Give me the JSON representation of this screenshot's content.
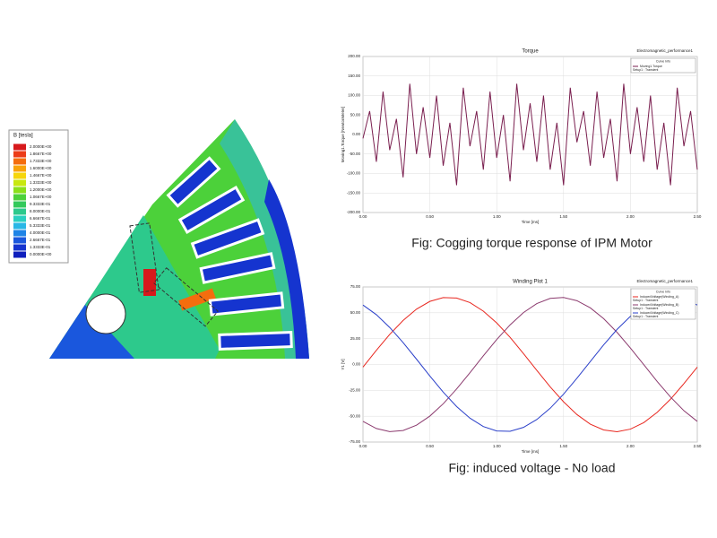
{
  "flux_legend": {
    "title": "B [tesla]",
    "items": [
      {
        "label": "2.0000E+00",
        "color": "#d7191c"
      },
      {
        "label": "1.8667E+00",
        "color": "#ec3b17"
      },
      {
        "label": "1.7333E+00",
        "color": "#f46d0e"
      },
      {
        "label": "1.6000E+00",
        "color": "#f9a30a"
      },
      {
        "label": "1.4667E+00",
        "color": "#f6d60b"
      },
      {
        "label": "1.3333E+00",
        "color": "#c8e80f"
      },
      {
        "label": "1.2000E+00",
        "color": "#8be01a"
      },
      {
        "label": "1.0667E+00",
        "color": "#4cd13a"
      },
      {
        "label": "9.3333E-01",
        "color": "#33c95b"
      },
      {
        "label": "8.0000E-01",
        "color": "#2dc98c"
      },
      {
        "label": "6.6667E-01",
        "color": "#2ad0c0"
      },
      {
        "label": "5.3333E-01",
        "color": "#29b7e6"
      },
      {
        "label": "4.0000E-01",
        "color": "#1f84e6"
      },
      {
        "label": "2.6667E-01",
        "color": "#1a57dd"
      },
      {
        "label": "1.3333E-01",
        "color": "#1534cf"
      },
      {
        "label": "0.0000E+00",
        "color": "#0f1fbd"
      }
    ]
  },
  "chart_data": [
    {
      "type": "line",
      "title": "Torque",
      "subtitle": "Electromagnetic_performance1",
      "caption": "Fig: Cogging torque response of IPM Motor",
      "x_label": "Time [ms]",
      "y_label": "Moving1.Torque [NewtonMeter]",
      "legend_header": "Curve Info",
      "x": [
        0,
        0.05,
        0.1,
        0.15,
        0.2,
        0.25,
        0.3,
        0.35,
        0.4,
        0.45,
        0.5,
        0.55,
        0.6,
        0.65,
        0.7,
        0.75,
        0.8,
        0.85,
        0.9,
        0.95,
        1,
        1.05,
        1.1,
        1.15,
        1.2,
        1.25,
        1.3,
        1.35,
        1.4,
        1.45,
        1.5,
        1.55,
        1.6,
        1.65,
        1.7,
        1.75,
        1.8,
        1.85,
        1.9,
        1.95,
        2,
        2.05,
        2.1,
        2.15,
        2.2,
        2.25,
        2.3,
        2.35,
        2.4,
        2.45,
        2.5
      ],
      "series": [
        {
          "name": "Moving1.Torque",
          "setup": "Setup1 : Transient",
          "color": "#7a1f4f",
          "values": [
            -10,
            60,
            -70,
            110,
            -40,
            40,
            -110,
            130,
            -50,
            70,
            -60,
            100,
            -80,
            30,
            -130,
            120,
            -30,
            60,
            -90,
            110,
            -60,
            50,
            -120,
            130,
            -40,
            80,
            -70,
            100,
            -90,
            30,
            -130,
            120,
            -20,
            60,
            -80,
            110,
            -60,
            40,
            -120,
            130,
            -50,
            70,
            -70,
            100,
            -90,
            30,
            -130,
            120,
            -30,
            60,
            -90
          ]
        }
      ],
      "xlim": [
        0,
        2.5
      ],
      "xticks": [
        {
          "value": 0,
          "label": "0.00"
        },
        {
          "value": 0.5,
          "label": "0.50"
        },
        {
          "value": 1,
          "label": "1.00"
        },
        {
          "value": 1.5,
          "label": "1.50"
        },
        {
          "value": 2,
          "label": "2.00"
        },
        {
          "value": 2.5,
          "label": "2.50"
        }
      ],
      "ylim": [
        -200,
        200
      ],
      "yticks": [
        {
          "value": 200,
          "label": "200.00"
        },
        {
          "value": 150,
          "label": "150.00"
        },
        {
          "value": 100,
          "label": "100.00"
        },
        {
          "value": 50,
          "label": "50.00"
        },
        {
          "value": 0,
          "label": "0.00"
        },
        {
          "value": -50,
          "label": "-50.00"
        },
        {
          "value": -100,
          "label": "-100.00"
        },
        {
          "value": -150,
          "label": "-150.00"
        },
        {
          "value": -200,
          "label": "-200.00"
        }
      ],
      "grid": true
    },
    {
      "type": "line",
      "title": "Winding Plot 1",
      "subtitle": "Electromagnetic_performance1",
      "caption": "Fig: induced voltage - No load",
      "x_label": "Time [ms]",
      "y_label": "Y1 [V]",
      "legend_header": "Curve Info",
      "x": [
        0,
        0.1,
        0.2,
        0.3,
        0.4,
        0.5,
        0.6,
        0.7,
        0.8,
        0.9,
        1,
        1.1,
        1.2,
        1.3,
        1.4,
        1.5,
        1.6,
        1.7,
        1.8,
        1.9,
        2,
        2.1,
        2.2,
        2.3,
        2.4,
        2.5
      ],
      "series": [
        {
          "name": "InducedVoltage(Winding_A)",
          "setup": "Setup1 : Transient",
          "color": "#e8271f",
          "values": [
            -2.5,
            13.7,
            29.1,
            42.6,
            53.5,
            61.0,
            64.7,
            64.3,
            59.9,
            51.6,
            40.2,
            26.3,
            10.6,
            -5.7,
            -21.6,
            -36.1,
            -48.4,
            -57.7,
            -63.3,
            -65.0,
            -62.5,
            -56.2,
            -46.3,
            -33.5,
            -18.5,
            -2.5
          ]
        },
        {
          "name": "InducedVoltage(Winding_B)",
          "setup": "Setup1 : Transient",
          "color": "#8b3a6e",
          "values": [
            -55.0,
            -61.9,
            -64.9,
            -63.8,
            -58.7,
            -49.9,
            -38.0,
            -23.7,
            -8.0,
            8.4,
            24.1,
            38.3,
            50.2,
            58.9,
            63.9,
            64.8,
            61.7,
            54.8,
            44.3,
            31.1,
            15.9,
            -0.2,
            -16.4,
            -31.5,
            -44.7,
            -55.0
          ]
        },
        {
          "name": "InducedVoltage(Winding_C)",
          "setup": "Setup1 : Transient",
          "color": "#2a3fc9",
          "values": [
            57.5,
            48.2,
            35.8,
            21.2,
            5.2,
            -11.1,
            -26.7,
            -40.6,
            -51.9,
            -60.0,
            -64.3,
            -64.6,
            -60.8,
            -53.2,
            -42.3,
            -28.7,
            -13.3,
            2.9,
            19.0,
            33.9,
            46.6,
            56.4,
            62.7,
            65.0,
            63.2,
            57.5
          ]
        }
      ],
      "xlim": [
        0,
        2.5
      ],
      "xticks": [
        {
          "value": 0,
          "label": "0.00"
        },
        {
          "value": 0.5,
          "label": "0.50"
        },
        {
          "value": 1,
          "label": "1.00"
        },
        {
          "value": 1.5,
          "label": "1.50"
        },
        {
          "value": 2,
          "label": "2.00"
        },
        {
          "value": 2.5,
          "label": "2.50"
        }
      ],
      "ylim": [
        -75,
        75
      ],
      "yticks": [
        {
          "value": 75,
          "label": "75.00"
        },
        {
          "value": 50,
          "label": "50.00"
        },
        {
          "value": 25,
          "label": "25.00"
        },
        {
          "value": 0,
          "label": "0.00"
        },
        {
          "value": -25,
          "label": "-25.00"
        },
        {
          "value": -50,
          "label": "-50.00"
        },
        {
          "value": -75,
          "label": "-75.00"
        }
      ],
      "grid": true
    }
  ]
}
